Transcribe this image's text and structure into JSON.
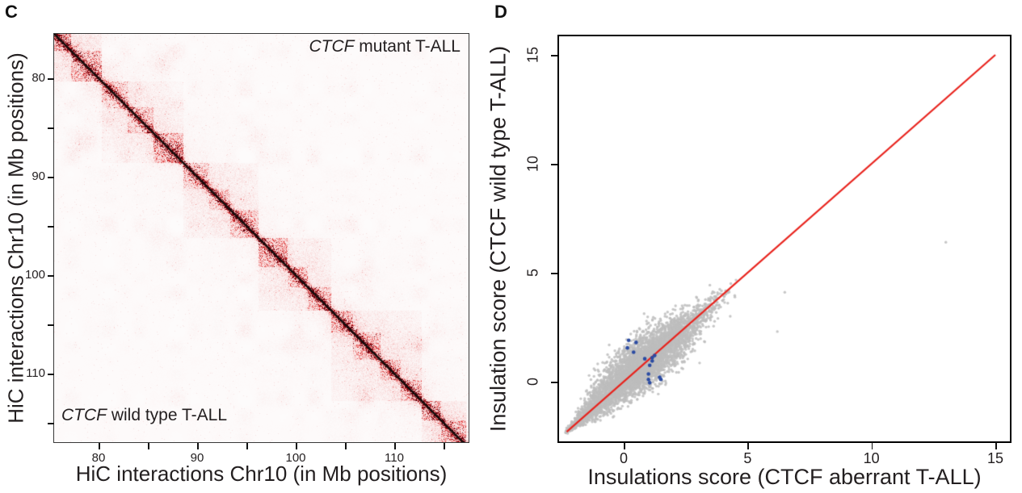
{
  "colors": {
    "figure_bg": "#ffffff",
    "text": "#231f20",
    "panel_letter": "#111111",
    "heatmap_frame": "#383838",
    "scatter_frame": "#000000",
    "scatter_gray": "#bdbdbd",
    "scatter_blue": "#2b4ba2",
    "identity_line_red": "#e8231d",
    "heatmap_diagonal": "#150c0c"
  },
  "chart_data": [
    {
      "type": "heatmap",
      "panel_label": "C",
      "x_title": "HiC interactions Chr10 (in Mb positions)",
      "y_title": "HiC interactions Chr10 (in Mb positions)",
      "annotation_top_right": {
        "gene_italic": "CTCF",
        "rest": " mutant T-ALL"
      },
      "annotation_bottom_left": {
        "gene_italic": "CTCF",
        "rest": " wild type T-ALL"
      },
      "upper_triangle_condition": "CTCF mutant T-ALL",
      "lower_triangle_condition": "CTCF wild type T-ALL",
      "axis": {
        "mb_min": 75.5,
        "mb_max": 117.3,
        "major_ticks": [
          80,
          90,
          100,
          110
        ],
        "minor_ticks": [
          85,
          95,
          105,
          115
        ]
      },
      "colormap": {
        "low": "#fdfbfb",
        "mid": "#ee8c8c",
        "high": "#68000c"
      },
      "tad_blocks_mb": [
        [
          75.5,
          77.2,
          0.95
        ],
        [
          77.2,
          80.3,
          0.8
        ],
        [
          80.3,
          83.0,
          0.55
        ],
        [
          83.0,
          85.6,
          0.6
        ],
        [
          85.6,
          88.6,
          0.9
        ],
        [
          88.6,
          91.2,
          0.6
        ],
        [
          91.2,
          93.4,
          0.55
        ],
        [
          93.4,
          96.2,
          0.7
        ],
        [
          96.2,
          99.2,
          0.8
        ],
        [
          99.2,
          101.2,
          0.75
        ],
        [
          101.2,
          103.6,
          0.8
        ],
        [
          103.6,
          105.8,
          0.65
        ],
        [
          105.8,
          108.6,
          0.75
        ],
        [
          108.6,
          110.7,
          0.7
        ],
        [
          110.7,
          112.8,
          0.75
        ],
        [
          112.8,
          114.8,
          0.95
        ],
        [
          114.8,
          117.3,
          0.85
        ]
      ],
      "domains_mb": [
        [
          75.5,
          80.3,
          0.3
        ],
        [
          80.3,
          88.6,
          0.22
        ],
        [
          88.6,
          96.2,
          0.2
        ],
        [
          96.2,
          103.6,
          0.22
        ],
        [
          103.6,
          112.8,
          0.25
        ],
        [
          112.8,
          117.3,
          0.3
        ]
      ],
      "offdiag_spots_mb": [
        [
          86.5,
          78.5,
          0.5
        ],
        [
          78.5,
          86.5,
          0.5
        ],
        [
          96.0,
          86.0,
          0.3
        ],
        [
          86.0,
          96.0,
          0.3
        ],
        [
          107.0,
          100.0,
          0.3
        ],
        [
          100.0,
          107.0,
          0.3
        ],
        [
          112.5,
          106.5,
          0.35
        ],
        [
          106.5,
          112.5,
          0.35
        ]
      ],
      "noise_seed": 13
    },
    {
      "type": "scatter",
      "panel_label": "D",
      "x_title": "Insulations score (CTCF aberrant T-ALL)",
      "y_title": "Insulation score (CTCF wild type T-ALL)",
      "x_ticks": [
        0,
        5,
        10,
        15
      ],
      "y_ticks": [
        0,
        5,
        10,
        15
      ],
      "x_range": [
        -2.6,
        15.6
      ],
      "y_range": [
        -2.9,
        15.7
      ],
      "identity_line": {
        "color": "#e8231d",
        "from": [
          -2.3,
          -2.3
        ],
        "to": [
          15.0,
          15.0
        ]
      },
      "series": [
        {
          "name": "insulation-scores-all-bins",
          "color": "#bdbdbd",
          "marker": "dot",
          "point_cloud": {
            "n": 4500,
            "seed": 42,
            "mixtures": [
              {
                "w": 0.58,
                "mean": 0.45,
                "sd": 0.85
              },
              {
                "w": 0.3,
                "mean": 1.9,
                "sd": 0.95
              },
              {
                "w": 0.12,
                "mean": -1.5,
                "sd": 0.55
              }
            ],
            "t_min": -2.35,
            "t_max": 4.6,
            "perp_sd_base": 0.1,
            "perp_sd_peak": 0.34,
            "perp_peak_t": 0.9,
            "perp_peak_width": 2.1,
            "taper_start": -2.35,
            "taper_len": 1.3,
            "upper_bulge": {
              "n": 420,
              "x_mean": 0.3,
              "x_sd": 0.8,
              "dy_sd": 0.7,
              "x_min": -1.2,
              "x_max": 2.6
            }
          },
          "outlier_points": [
            [
              4.2,
              3.6
            ],
            [
              4.3,
              3.0
            ],
            [
              6.5,
              4.1
            ],
            [
              6.2,
              2.3
            ],
            [
              13.0,
              6.4
            ]
          ]
        },
        {
          "name": "insulation-scores-highlighted-bins",
          "color": "#2b4ba2",
          "marker": "dot",
          "points": [
            [
              0.2,
              1.9
            ],
            [
              0.15,
              1.55
            ],
            [
              0.4,
              1.35
            ],
            [
              0.5,
              1.8
            ],
            [
              0.85,
              1.05
            ],
            [
              1.15,
              1.1
            ],
            [
              1.25,
              1.2
            ],
            [
              1.15,
              0.95
            ],
            [
              1.05,
              0.75
            ],
            [
              1.0,
              0.35
            ],
            [
              1.5,
              0.1
            ],
            [
              1.0,
              0.1
            ],
            [
              1.05,
              -0.05
            ],
            [
              1.45,
              0.2
            ]
          ]
        }
      ]
    }
  ]
}
